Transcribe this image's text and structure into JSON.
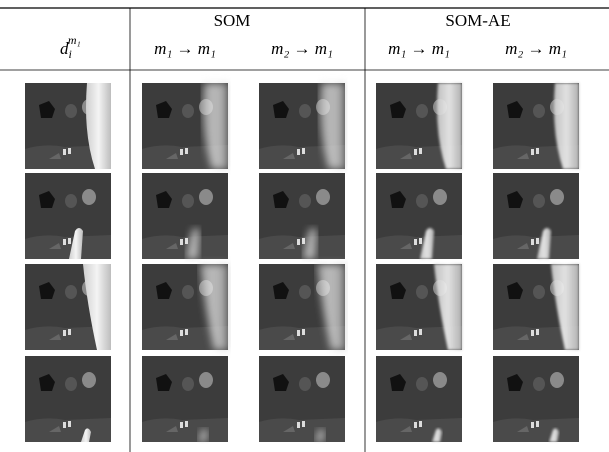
{
  "header": {
    "first_col": {
      "base": "d",
      "sub": "i",
      "sup": "m₁"
    },
    "groups": [
      "SOM",
      "SOM-AE"
    ],
    "subheaders": [
      "m₁ → m₁",
      "m₂ → m₁",
      "m₁ → m₁",
      "m₂ → m₁"
    ]
  }
}
